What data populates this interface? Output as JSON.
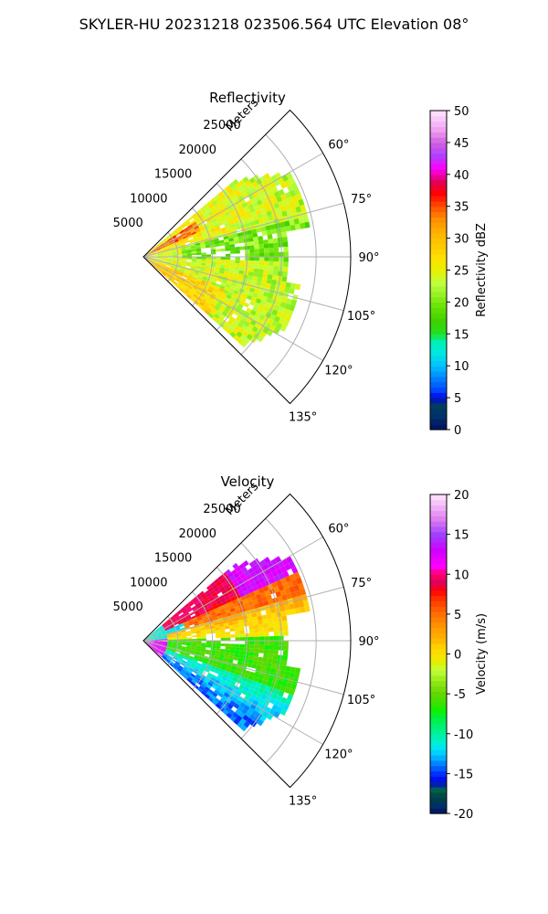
{
  "figure": {
    "title": "SKYLER-HU  20231218  023506.564 UTC Elevation 08°"
  },
  "colors": {
    "dbz_stops": [
      [
        0,
        "#001060"
      ],
      [
        2,
        "#00306a"
      ],
      [
        4,
        "#004060"
      ],
      [
        5,
        "#0000e0"
      ],
      [
        6,
        "#0040ff"
      ],
      [
        8,
        "#0080ff"
      ],
      [
        10,
        "#00c0ff"
      ],
      [
        12,
        "#00e8e0"
      ],
      [
        14,
        "#00f0b0"
      ],
      [
        15,
        "#20e020"
      ],
      [
        17,
        "#40d000"
      ],
      [
        19,
        "#60e000"
      ],
      [
        21,
        "#90f020"
      ],
      [
        23,
        "#c0ff40"
      ],
      [
        25,
        "#e8f000"
      ],
      [
        27,
        "#ffe000"
      ],
      [
        29,
        "#ffc800"
      ],
      [
        31,
        "#ffb000"
      ],
      [
        33,
        "#ff8c00"
      ],
      [
        35,
        "#ff5000"
      ],
      [
        37,
        "#ff0000"
      ],
      [
        39,
        "#e00060"
      ],
      [
        41,
        "#ff00ff"
      ],
      [
        43,
        "#b040ff"
      ],
      [
        45,
        "#d060e0"
      ],
      [
        47,
        "#f0a0f0"
      ],
      [
        50,
        "#ffe8ff"
      ]
    ],
    "vel_stops": [
      [
        -20,
        "#001060"
      ],
      [
        -19,
        "#00306a"
      ],
      [
        -18,
        "#004040"
      ],
      [
        -17,
        "#006050"
      ],
      [
        -16,
        "#0000e0"
      ],
      [
        -15,
        "#0030ff"
      ],
      [
        -14,
        "#0070ff"
      ],
      [
        -13,
        "#00b0ff"
      ],
      [
        -12,
        "#00e0ff"
      ],
      [
        -11,
        "#00f0d0"
      ],
      [
        -10,
        "#00f0a0"
      ],
      [
        -9,
        "#00f070"
      ],
      [
        -8,
        "#00f040"
      ],
      [
        -7,
        "#10f000"
      ],
      [
        -6,
        "#40e000"
      ],
      [
        -5,
        "#60d800"
      ],
      [
        -4,
        "#80e010"
      ],
      [
        -3,
        "#a0f020"
      ],
      [
        -2,
        "#c0ff40"
      ],
      [
        -1,
        "#e0f000"
      ],
      [
        0,
        "#ffe000"
      ],
      [
        1,
        "#ffd000"
      ],
      [
        2,
        "#ffb000"
      ],
      [
        3,
        "#ffa000"
      ],
      [
        4,
        "#ff8800"
      ],
      [
        5,
        "#ff7000"
      ],
      [
        6,
        "#ff5000"
      ],
      [
        7,
        "#ff3000"
      ],
      [
        8,
        "#ff0000"
      ],
      [
        9,
        "#e00060"
      ],
      [
        10,
        "#ff0060"
      ],
      [
        11,
        "#ff00ff"
      ],
      [
        13,
        "#d000ff"
      ],
      [
        15,
        "#a040ff"
      ],
      [
        17,
        "#e080f0"
      ],
      [
        20,
        "#ffe8ff"
      ]
    ]
  },
  "chart_data": [
    {
      "type": "heatmap",
      "title": "Reflectivity",
      "radial_label": "Meters",
      "radial_ticks": [
        5000,
        10000,
        15000,
        20000,
        25000
      ],
      "rlim": [
        0,
        30000
      ],
      "azimuth_range_deg": [
        45,
        135
      ],
      "angle_ticks": [
        60,
        75,
        90,
        105,
        120,
        135
      ],
      "grid": true,
      "colorbar": {
        "label": "Reflectivity dBZ",
        "range": [
          0,
          50
        ],
        "ticks": [
          0,
          5,
          10,
          15,
          20,
          25,
          30,
          35,
          40,
          45,
          50
        ]
      },
      "field_summary": [
        {
          "azimuth": [
            50,
            75
          ],
          "range_m": [
            0,
            26000
          ],
          "value": 27,
          "note": "yellow-orange with red core near 60°"
        },
        {
          "azimuth": [
            75,
            92
          ],
          "range_m": [
            0,
            22000
          ],
          "value": 20
        },
        {
          "azimuth": [
            92,
            120
          ],
          "range_m": [
            0,
            24000
          ],
          "value": 25
        },
        {
          "azimuth": [
            120,
            133
          ],
          "range_m": [
            0,
            21000
          ],
          "value": 22
        }
      ]
    },
    {
      "type": "heatmap",
      "title": "Velocity",
      "radial_label": "Meters",
      "radial_ticks": [
        5000,
        10000,
        15000,
        20000,
        25000
      ],
      "rlim": [
        0,
        30000
      ],
      "azimuth_range_deg": [
        45,
        135
      ],
      "angle_ticks": [
        60,
        75,
        90,
        105,
        120,
        135
      ],
      "grid": true,
      "colorbar": {
        "label": "Velocity (m/s)",
        "range": [
          -20,
          20
        ],
        "ticks": [
          -20,
          -15,
          -10,
          -5,
          0,
          5,
          10,
          15,
          20
        ]
      },
      "field_summary": [
        {
          "azimuth": [
            50,
            70
          ],
          "range_m": [
            0,
            26000
          ],
          "value": 9
        },
        {
          "azimuth": [
            70,
            88
          ],
          "range_m": [
            0,
            22000
          ],
          "value": 2
        },
        {
          "azimuth": [
            88,
            110
          ],
          "range_m": [
            0,
            24000
          ],
          "value": -6
        },
        {
          "azimuth": [
            110,
            133
          ],
          "range_m": [
            0,
            21000
          ],
          "value": -11
        }
      ]
    }
  ]
}
